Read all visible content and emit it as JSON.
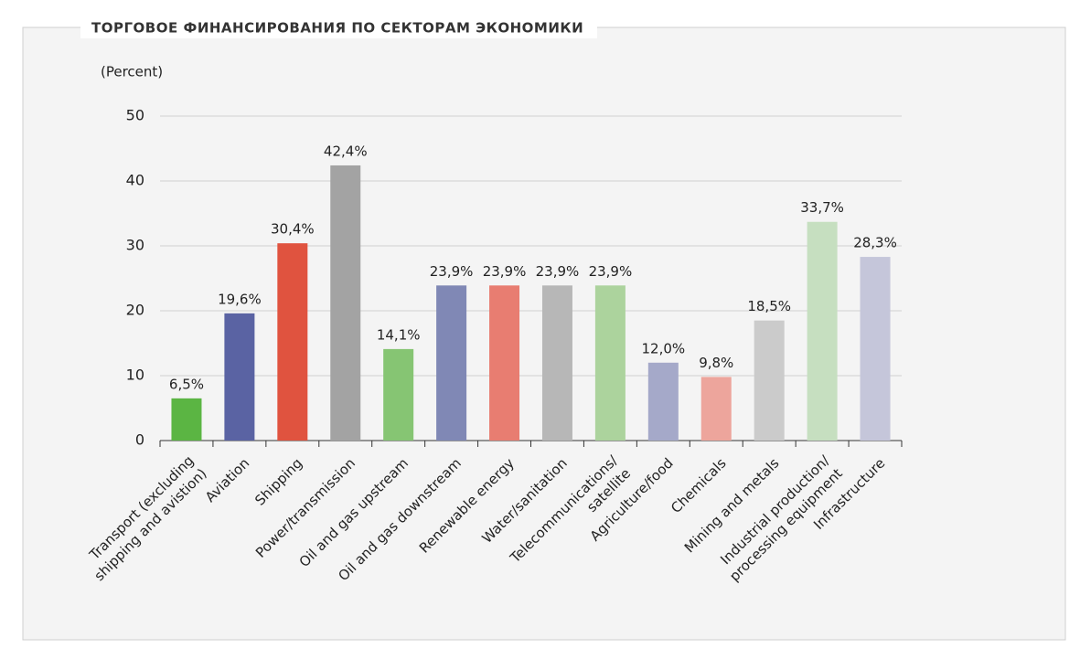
{
  "chart_data": {
    "type": "bar",
    "title": "ТОРГОВОЕ ФИНАНСИРОВАНИЯ ПО СЕКТОРАМ ЭКОНОМИКИ",
    "ylabel": "(Percent)",
    "categories": [
      "Transport (excluding\nshipping and avistion)",
      "Aviation",
      "Shipping",
      "Power/transmission",
      "Oil and gas upstream",
      "Oil and gas downstream",
      "Renewable energy",
      "Water/sanitation",
      "Telecommunications/\nsatellite",
      "Agriculture/food",
      "Chemicals",
      "Mining and metals",
      "Industrial production/\nprocessing equipment",
      "Infrastructure"
    ],
    "values": [
      6.5,
      19.6,
      30.4,
      42.4,
      14.1,
      23.9,
      23.9,
      23.9,
      23.9,
      12.0,
      9.8,
      18.5,
      33.7,
      28.3
    ],
    "value_labels": [
      "6,5%",
      "19,6%",
      "30,4%",
      "42,4%",
      "14,1%",
      "23,9%",
      "23,9%",
      "23,9%",
      "23,9%",
      "12,0%",
      "9,8%",
      "18,5%",
      "33,7%",
      "28,3%"
    ],
    "colors": [
      "#5bb543",
      "#5a63a3",
      "#e0533f",
      "#a3a3a3",
      "#86c573",
      "#8088b5",
      "#e87d71",
      "#b7b7b7",
      "#acd39d",
      "#a5a9c9",
      "#eda59c",
      "#cbcbcb",
      "#c6dfc0",
      "#c5c6da"
    ],
    "ylim": [
      0,
      50
    ],
    "yticks": [
      0,
      10,
      20,
      30,
      40,
      50
    ],
    "grid": true
  }
}
